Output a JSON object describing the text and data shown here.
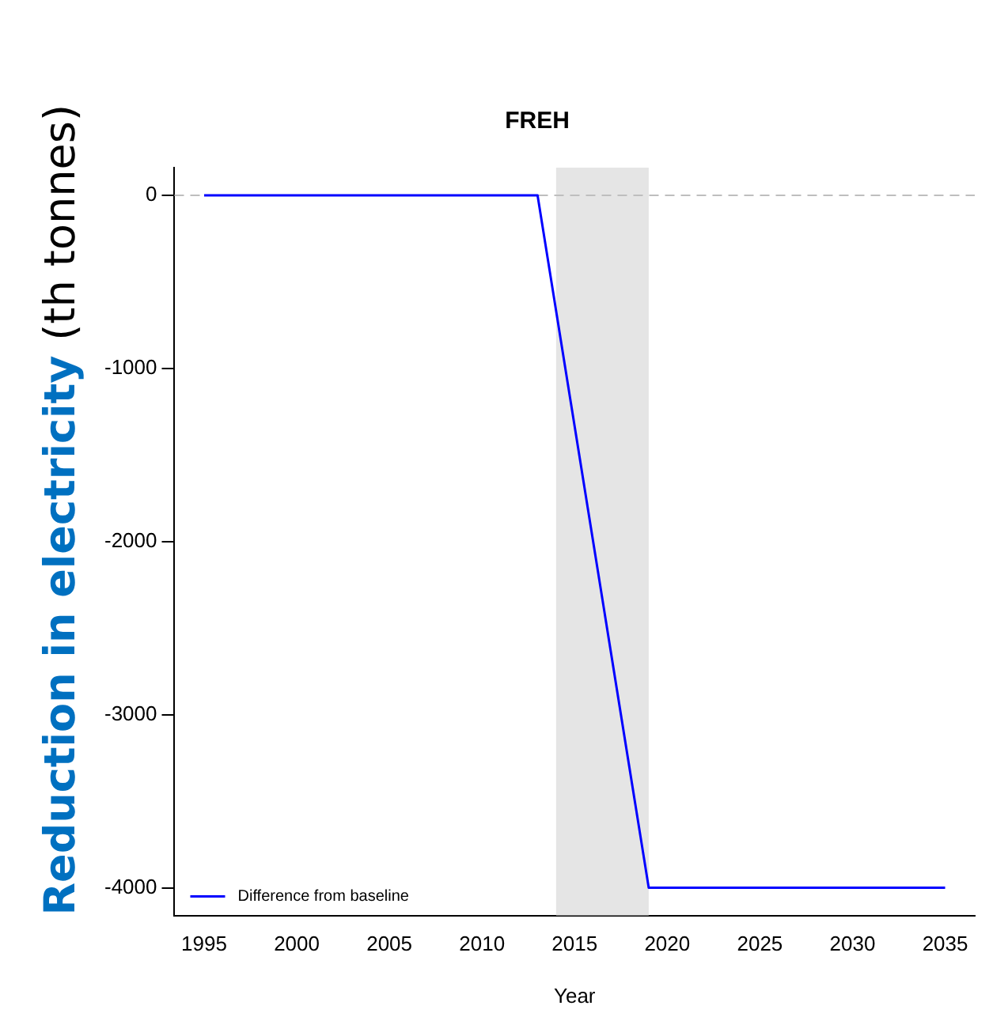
{
  "chart_data": {
    "type": "line",
    "title": "FREH",
    "xlabel": "Year",
    "ylabel": "Reduction in electricity (th tonnes)",
    "x": [
      1995,
      2013,
      2019,
      2035
    ],
    "series": [
      {
        "name": "Difference from baseline",
        "color": "#0000ff",
        "values": [
          0,
          0,
          -4000,
          -4000
        ]
      }
    ],
    "xlim": [
      1993.4,
      2036.6
    ],
    "xticks": [
      1995,
      2000,
      2005,
      2010,
      2015,
      2020,
      2025,
      2030,
      2035
    ],
    "ylim": [
      -4160,
      160
    ],
    "yticks": [
      -4000,
      -3000,
      -2000,
      -1000,
      0
    ],
    "ref_lines": [
      {
        "axis": "y",
        "value": 0,
        "color": "#bebebe",
        "line_style": "dashed"
      }
    ],
    "bands": [
      {
        "axis": "x",
        "from": 2014,
        "to": 2019,
        "color": "#e5e5e5"
      }
    ],
    "grid": false,
    "legend": "bottom left",
    "marker": "none",
    "line_style": "solid"
  }
}
